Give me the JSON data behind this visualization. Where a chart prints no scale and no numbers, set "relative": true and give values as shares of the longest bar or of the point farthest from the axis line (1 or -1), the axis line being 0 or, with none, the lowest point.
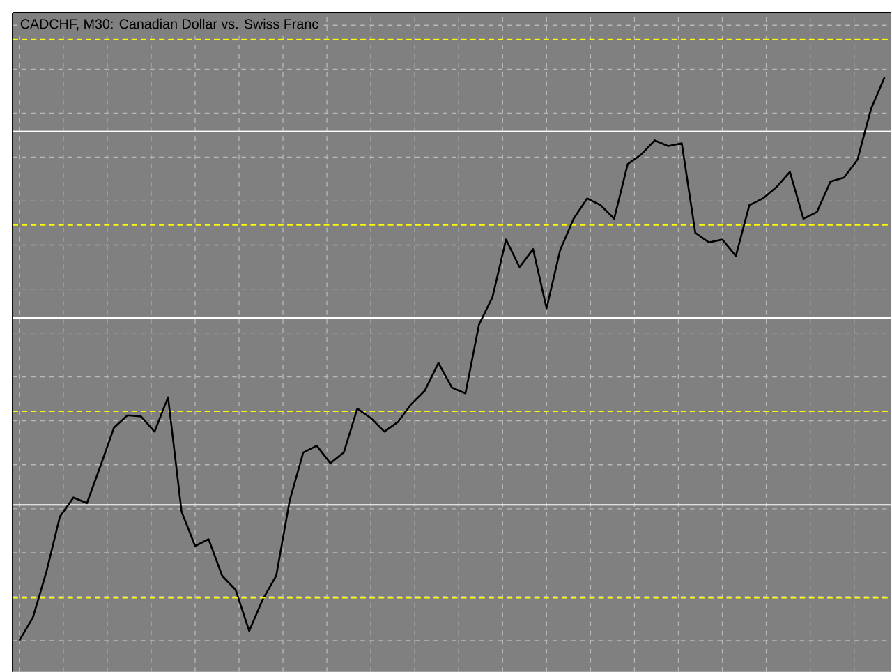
{
  "chart_data": {
    "type": "line",
    "title": "CADCHF, M30:  Canadian Dollar vs. Swiss Franc",
    "relative": true,
    "tick_labels": false,
    "grid": true,
    "marker": "none",
    "line_style": "solid",
    "categories": [
      null,
      null,
      null,
      null,
      null,
      null,
      null,
      null,
      null,
      null,
      null,
      null,
      null,
      null,
      null,
      null,
      null,
      null,
      null,
      null,
      null,
      null,
      null,
      null,
      null,
      null,
      null,
      null,
      null,
      null,
      null,
      null,
      null,
      null,
      null,
      null,
      null,
      null,
      null,
      null,
      null,
      null,
      null,
      null,
      null,
      null,
      null,
      null,
      null,
      null,
      null,
      null,
      null,
      null,
      null,
      null,
      null,
      null,
      null,
      null,
      null,
      null,
      null,
      null,
      null
    ],
    "series": [
      {
        "color": "#000000",
        "values": [
          0,
          0.041,
          0.122,
          0.22,
          0.254,
          0.244,
          0.31,
          0.378,
          0.4,
          0.398,
          0.371,
          0.432,
          0.229,
          0.168,
          0.18,
          0.115,
          0.09,
          0.017,
          0.073,
          0.115,
          0.249,
          0.334,
          0.346,
          0.315,
          0.334,
          0.412,
          0.395,
          0.371,
          0.388,
          0.42,
          0.444,
          0.493,
          0.449,
          0.439,
          0.561,
          0.61,
          0.712,
          0.663,
          0.695,
          0.59,
          0.693,
          0.749,
          0.785,
          0.773,
          0.749,
          0.846,
          0.863,
          0.888,
          0.878,
          0.883,
          0.724,
          0.707,
          0.712,
          0.683,
          0.773,
          0.785,
          0.805,
          0.832,
          0.749,
          0.761,
          0.815,
          0.822,
          0.854,
          0.944,
          1
        ]
      }
    ],
    "ref_lines": [
      {
        "axis": "y",
        "value": 1.067,
        "color": "#ffff00",
        "line_style": "dashed"
      },
      {
        "axis": "y",
        "value": 0.904,
        "color": "#ffffff",
        "line_style": "solid"
      },
      {
        "axis": "y",
        "value": 0.738,
        "color": "#ffff00",
        "line_style": "dashed"
      },
      {
        "axis": "y",
        "value": 0.573,
        "color": "#ffffff",
        "line_style": "solid"
      },
      {
        "axis": "y",
        "value": 0.407,
        "color": "#ffff00",
        "line_style": "dashed"
      },
      {
        "axis": "y",
        "value": 0.241,
        "color": "#ffffff",
        "line_style": "solid"
      },
      {
        "axis": "y",
        "value": 0.076,
        "color": "#ffff00",
        "line_style": "dashed"
      }
    ]
  }
}
